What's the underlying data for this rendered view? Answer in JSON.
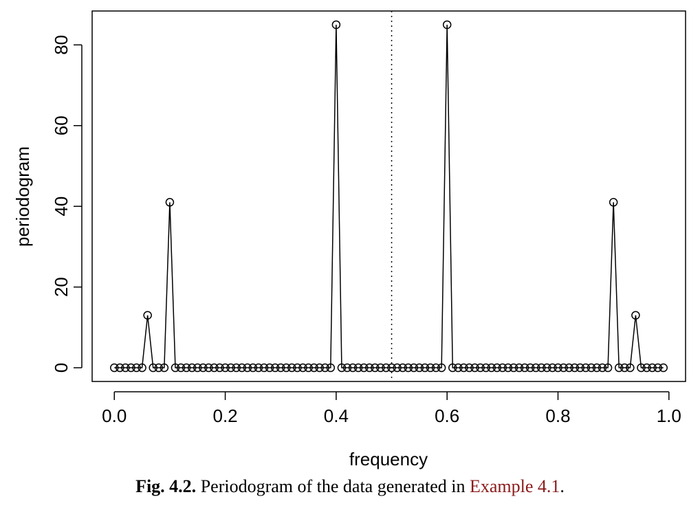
{
  "chart_data": {
    "type": "line",
    "title": "",
    "xlabel": "frequency",
    "ylabel": "periodogram",
    "xlim": [
      -0.04,
      1.03
    ],
    "ylim": [
      -3.4,
      88.4
    ],
    "xticks": [
      0.0,
      0.2,
      0.4,
      0.6,
      0.8,
      1.0
    ],
    "xtick_labels": [
      "0.0",
      "0.2",
      "0.4",
      "0.6",
      "0.8",
      "1.0"
    ],
    "yticks": [
      0,
      20,
      40,
      60,
      80
    ],
    "ytick_labels": [
      "0",
      "20",
      "40",
      "60",
      "80"
    ],
    "grid": false,
    "markers": "open-circle",
    "reference_line": {
      "x": 0.5,
      "style": "dotted",
      "orientation": "vertical"
    },
    "series": [
      {
        "x": [
          0.0,
          0.01,
          0.02,
          0.03,
          0.04,
          0.05,
          0.06,
          0.07,
          0.08,
          0.09,
          0.1,
          0.11,
          0.12,
          0.13,
          0.14,
          0.15,
          0.16,
          0.17,
          0.18,
          0.19,
          0.2,
          0.21,
          0.22,
          0.23,
          0.24,
          0.25,
          0.26,
          0.27,
          0.28,
          0.29,
          0.3,
          0.31,
          0.32,
          0.33,
          0.34,
          0.35,
          0.36,
          0.37,
          0.38,
          0.39,
          0.4,
          0.41,
          0.42,
          0.43,
          0.44,
          0.45,
          0.46,
          0.47,
          0.48,
          0.49,
          0.5,
          0.51,
          0.52,
          0.53,
          0.54,
          0.55,
          0.56,
          0.57,
          0.58,
          0.59,
          0.6,
          0.61,
          0.62,
          0.63,
          0.64,
          0.65,
          0.66,
          0.67,
          0.68,
          0.69,
          0.7,
          0.71,
          0.72,
          0.73,
          0.74,
          0.75,
          0.76,
          0.77,
          0.78,
          0.79,
          0.8,
          0.81,
          0.82,
          0.83,
          0.84,
          0.85,
          0.86,
          0.87,
          0.88,
          0.89,
          0.9,
          0.91,
          0.92,
          0.93,
          0.94,
          0.95,
          0.96,
          0.97,
          0.98,
          0.99
        ],
        "y": [
          0,
          0,
          0,
          0,
          0,
          0,
          13,
          0,
          0,
          0,
          41,
          0,
          0,
          0,
          0,
          0,
          0,
          0,
          0,
          0,
          0,
          0,
          0,
          0,
          0,
          0,
          0,
          0,
          0,
          0,
          0,
          0,
          0,
          0,
          0,
          0,
          0,
          0,
          0,
          0,
          85,
          0,
          0,
          0,
          0,
          0,
          0,
          0,
          0,
          0,
          0,
          0,
          0,
          0,
          0,
          0,
          0,
          0,
          0,
          0,
          85,
          0,
          0,
          0,
          0,
          0,
          0,
          0,
          0,
          0,
          0,
          0,
          0,
          0,
          0,
          0,
          0,
          0,
          0,
          0,
          0,
          0,
          0,
          0,
          0,
          0,
          0,
          0,
          0,
          0,
          41,
          0,
          0,
          0,
          13,
          0,
          0,
          0,
          0,
          0
        ]
      }
    ]
  },
  "caption": {
    "label": "Fig. 4.2.",
    "text": " Periodogram of the data generated in ",
    "reference": "Example 4.1",
    "end": "."
  }
}
